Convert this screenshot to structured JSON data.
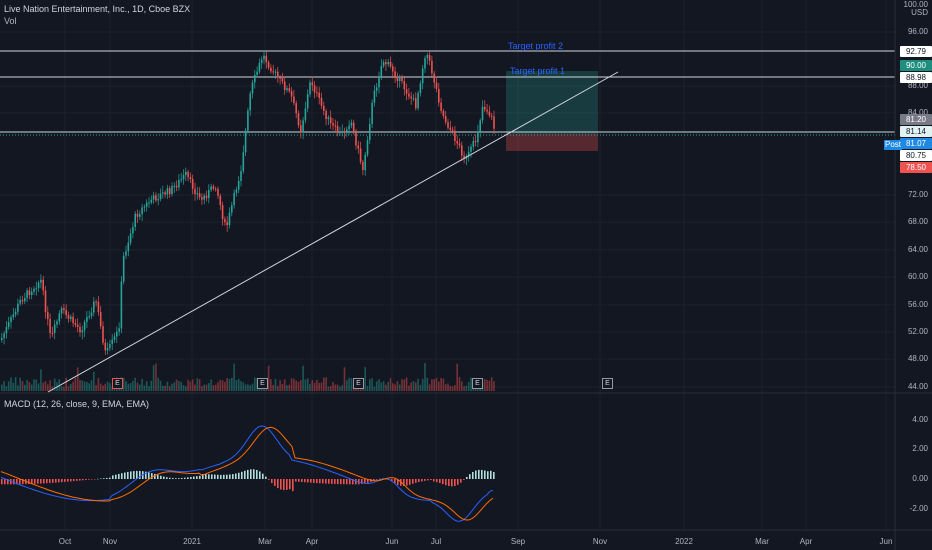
{
  "header": {
    "title": "Live Nation Entertainment, Inc., 1D, Cboe BZX",
    "vol_label": "Vol"
  },
  "macd": {
    "label": "MACD (12, 26, close, 9, EMA, EMA)"
  },
  "price_axis": {
    "currency": "USD",
    "ticks": [
      "100.00",
      "96.00",
      "88.00",
      "84.00",
      "72.00",
      "68.00",
      "64.00",
      "60.00",
      "56.00",
      "52.00",
      "48.00",
      "44.00"
    ],
    "badges": {
      "tp2": "92.79",
      "tp_green": "90.00",
      "tp1": "88.98",
      "last": "81.20",
      "line": "81.14",
      "post": "81.07",
      "stop": "80.75",
      "red": "78.50"
    },
    "post_tag": "Post"
  },
  "macd_axis": {
    "ticks": [
      "4.00",
      "2.00",
      "0.00",
      "-2.00"
    ]
  },
  "time_axis": [
    "Oct",
    "Nov",
    "2021",
    "Mar",
    "Apr",
    "Jun",
    "Jul",
    "Sep",
    "Nov",
    "2022",
    "Mar",
    "Apr",
    "Jun"
  ],
  "annotations": {
    "target_profit_2": "Target profit 2",
    "target_profit_1": "Target profit 1"
  },
  "earnings_marker": "E",
  "colors": {
    "background": "#131722",
    "up": "#26a69a",
    "down": "#ef5350",
    "macd_line": "#2962ff",
    "signal_line": "#ff6d00",
    "hist_up": "#b2dfdb",
    "hist_down": "#ef5350"
  }
}
